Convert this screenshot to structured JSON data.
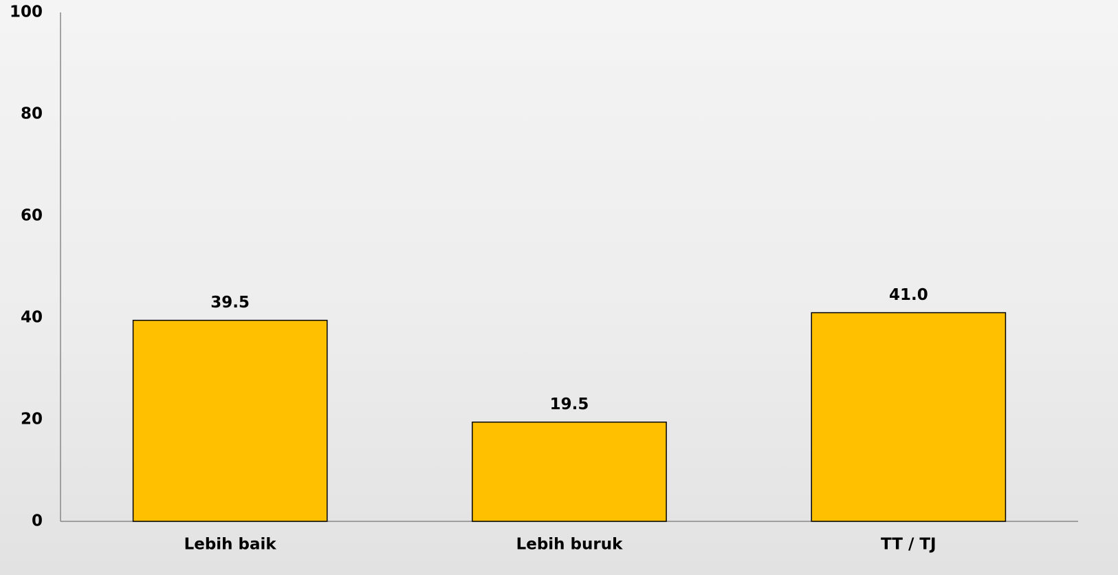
{
  "chart_data": {
    "type": "bar",
    "categories": [
      "Lebih baik",
      "Lebih buruk",
      "TT / TJ"
    ],
    "values": [
      39.5,
      19.5,
      41.0
    ],
    "value_labels": [
      "39.5",
      "19.5",
      "41.0"
    ],
    "color": "#ffc000",
    "ylim": [
      0,
      100
    ],
    "yticks": [
      0,
      20,
      40,
      60,
      80,
      100
    ],
    "grid": false
  }
}
